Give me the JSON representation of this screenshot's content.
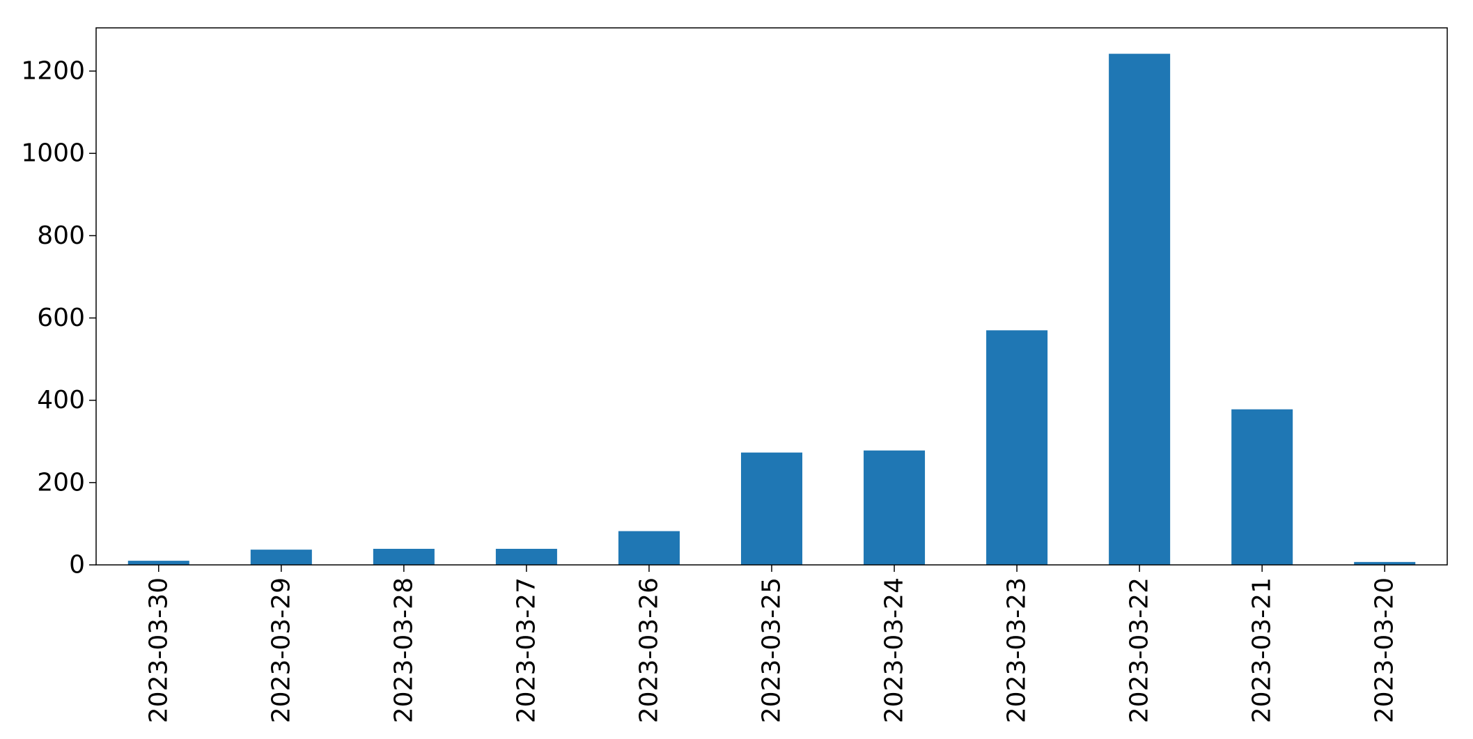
{
  "chart_data": {
    "type": "bar",
    "title": "",
    "xlabel": "",
    "ylabel": "",
    "categories": [
      "2023-03-30",
      "2023-03-29",
      "2023-03-28",
      "2023-03-27",
      "2023-03-26",
      "2023-03-25",
      "2023-03-24",
      "2023-03-23",
      "2023-03-22",
      "2023-03-21",
      "2023-03-20"
    ],
    "values": [
      10,
      37,
      39,
      39,
      82,
      273,
      278,
      570,
      1242,
      378,
      7
    ],
    "ylim": [
      0,
      1305
    ],
    "yticks": [
      0,
      200,
      400,
      600,
      800,
      1000,
      1200
    ],
    "grid": false,
    "legend": "none",
    "bar_color": "#1f77b4",
    "xtick_rotation": 90
  }
}
